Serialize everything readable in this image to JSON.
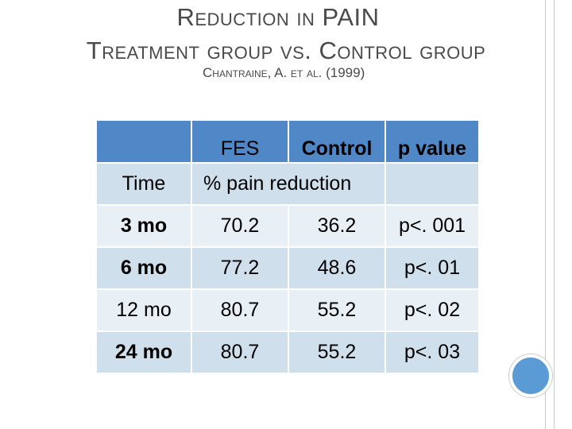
{
  "slide": {
    "title_line1": "Reduction in PAIN",
    "title_line2": "Treatment group vs. Control group",
    "subtitle": "Chantraine, A. et al. (1999)"
  },
  "table": {
    "headers": {
      "col1": "",
      "fes": "FES",
      "control": "Control",
      "p_value": "p value"
    },
    "subheader": {
      "time": "Time",
      "measure": "% pain reduction"
    },
    "rows": [
      {
        "time": "3 mo",
        "fes": "70.2",
        "control": "36.2",
        "p": "p<. 001"
      },
      {
        "time": "6 mo",
        "fes": "77.2",
        "control": "48.6",
        "p": "p<. 01"
      },
      {
        "time": "12 mo",
        "fes": "80.7",
        "control": "55.2",
        "p": "p<. 02"
      },
      {
        "time": "24 mo",
        "fes": "80.7",
        "control": "55.2",
        "p": "p<. 03"
      }
    ]
  },
  "colors": {
    "header": "#4f87c7",
    "row_dark": "#cfdfeb",
    "row_light": "#e8eff5",
    "accent_circle": "#5b9bd5"
  }
}
